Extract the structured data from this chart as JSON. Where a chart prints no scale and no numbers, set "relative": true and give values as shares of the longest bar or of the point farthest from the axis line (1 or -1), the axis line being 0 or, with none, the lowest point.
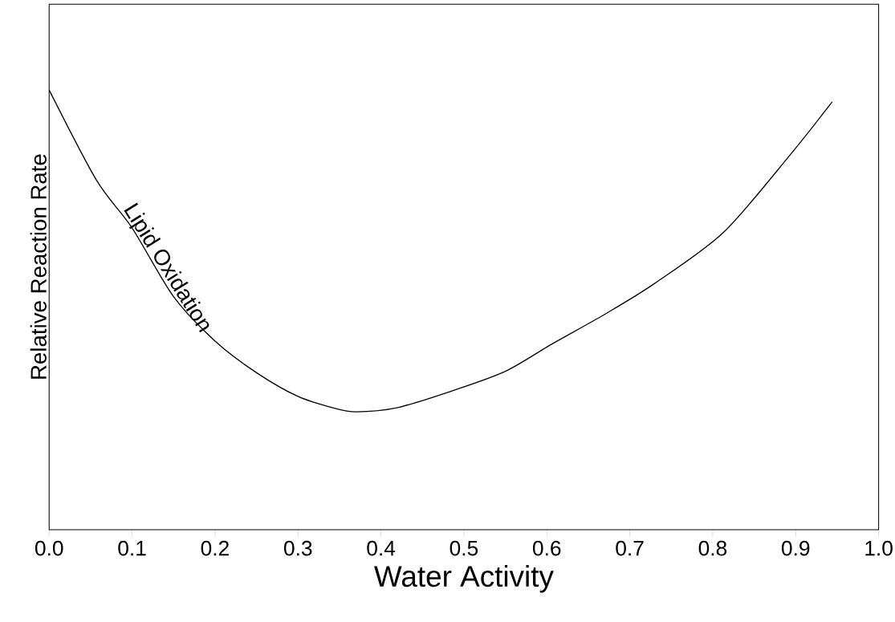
{
  "chart_data": {
    "type": "line",
    "relative": true,
    "xlabel": "Water Activity",
    "ylabel": "Relative Reaction Rate",
    "x": [
      0,
      0.057,
      0.1,
      0.15,
      0.2,
      0.25,
      0.3,
      0.344,
      0.37,
      0.419,
      0.485,
      0.55,
      0.607,
      0.67,
      0.73,
      0.813,
      0.894,
      0.944
    ],
    "series": [
      {
        "color": "#000000",
        "values": [
          1,
          0.795,
          0.686,
          0.53,
          0.429,
          0.357,
          0.303,
          0.276,
          0.268,
          0.277,
          0.315,
          0.36,
          0.423,
          0.49,
          0.56,
          0.676,
          0.854,
          0.973
        ]
      }
    ],
    "xlim": [
      0,
      1
    ],
    "xticks": [
      {
        "value": 0,
        "label": "0.0"
      },
      {
        "value": 0.1,
        "label": "0.1"
      },
      {
        "value": 0.2,
        "label": "0.2"
      },
      {
        "value": 0.3,
        "label": "0.3"
      },
      {
        "value": 0.4,
        "label": "0.4"
      },
      {
        "value": 0.5,
        "label": "0.5"
      },
      {
        "value": 0.6,
        "label": "0.6"
      },
      {
        "value": 0.7,
        "label": "0.7"
      },
      {
        "value": 0.8,
        "label": "0.8"
      },
      {
        "value": 0.9,
        "label": "0.9"
      },
      {
        "value": 1,
        "label": "1.0"
      }
    ],
    "annotations": [
      {
        "text": "Lipid Oxidation",
        "x": 0.13,
        "y": 0.58
      }
    ],
    "marker": "none",
    "line_style": "solid"
  }
}
